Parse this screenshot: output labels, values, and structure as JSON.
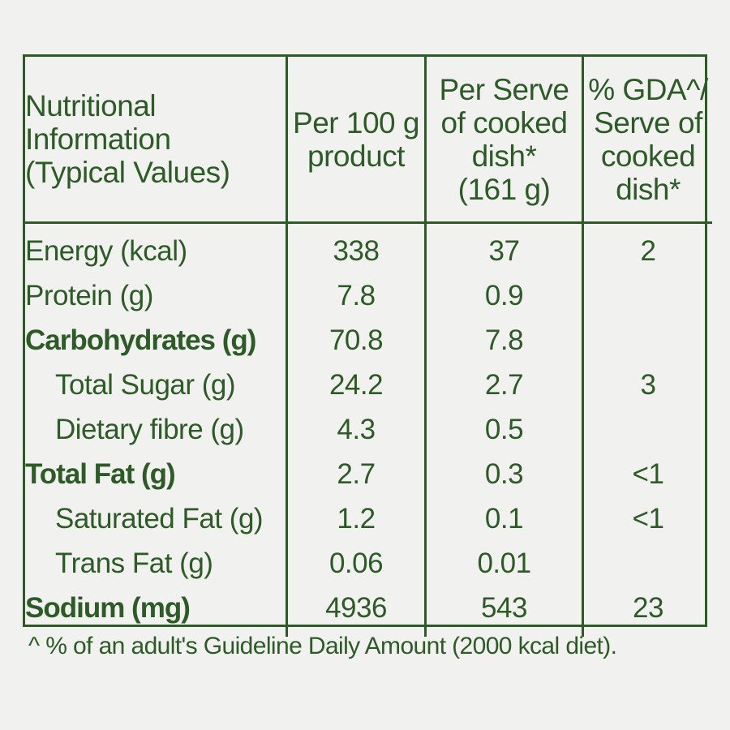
{
  "header": {
    "col1": [
      "Nutritional",
      "Information",
      "(Typical Values)"
    ],
    "col2": [
      "Per 100 g",
      "product"
    ],
    "col3": [
      "Per Serve",
      "of cooked",
      "dish*",
      "(161 g)"
    ],
    "col4": [
      "% GDA^/",
      "Serve of",
      "cooked",
      "dish*"
    ]
  },
  "rows": [
    {
      "label": "Energy (kcal)",
      "per100": "338",
      "perServe": "37",
      "gda": "2",
      "bold": false,
      "indent": false
    },
    {
      "label": "Protein (g)",
      "per100": "7.8",
      "perServe": "0.9",
      "gda": "",
      "bold": false,
      "indent": false
    },
    {
      "label": "Carbohydrates (g)",
      "per100": "70.8",
      "perServe": "7.8",
      "gda": "",
      "bold": true,
      "indent": false
    },
    {
      "label": "Total Sugar (g)",
      "per100": "24.2",
      "perServe": "2.7",
      "gda": "3",
      "bold": false,
      "indent": true
    },
    {
      "label": "Dietary fibre (g)",
      "per100": "4.3",
      "perServe": "0.5",
      "gda": "",
      "bold": false,
      "indent": true
    },
    {
      "label": "Total Fat (g)",
      "per100": "2.7",
      "perServe": "0.3",
      "gda": "<1",
      "bold": true,
      "indent": false
    },
    {
      "label": "Saturated Fat (g)",
      "per100": "1.2",
      "perServe": "0.1",
      "gda": "<1",
      "bold": false,
      "indent": true
    },
    {
      "label": "Trans Fat (g)",
      "per100": "0.06",
      "perServe": "0.01",
      "gda": "",
      "bold": false,
      "indent": true
    },
    {
      "label": "Sodium (mg)",
      "per100": "4936",
      "perServe": "543",
      "gda": "23",
      "bold": true,
      "indent": false
    }
  ],
  "footnote": "^ % of an adult's Guideline Daily Amount (2000 kcal diet).",
  "colors": {
    "ink": "#2e5a28",
    "background": "#f1f1ef"
  }
}
